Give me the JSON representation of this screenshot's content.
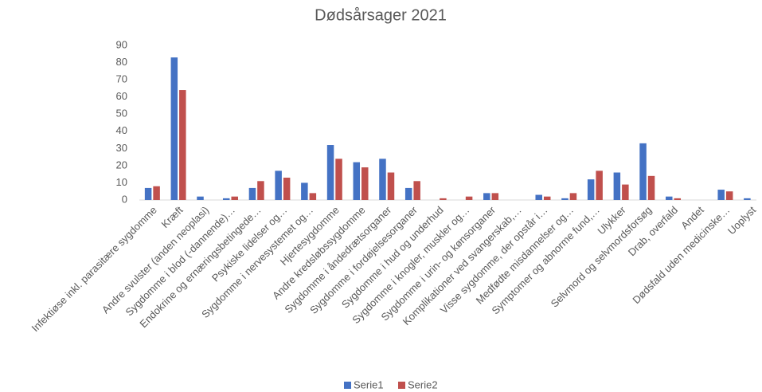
{
  "chart_data": {
    "type": "bar",
    "title": "Dødsårsager 2021",
    "categories": [
      "Infektiøse inkl. parasitære sygdomme",
      "Kræft",
      "Andre svulster (anden neoplasi)",
      "Sygdomme i blod (-dannende)…",
      "Endokrine og ernæringsbetingede…",
      "Psykiske lidelser og…",
      "Sygdomme i nervesystemet og…",
      "Hjertesygdomme",
      "Andre kredsløbssygdomme",
      "Sygdomme i åndedrætsorganer",
      "Sygdomme i fordøjelsesorganer",
      "Sygdomme i hud og underhud",
      "Sygdomme i knogler, muskler og…",
      "Sygdomme i urin- og kønsorganer",
      "Komplikationer ved svangerskab,…",
      "Visse sygdomme, der opstår i…",
      "Medfødte misdannelser og…",
      "Symptomer og abnorme fund,…",
      "Ulykker",
      "Selvmord og selvmordsforsøg",
      "Drab, overfald",
      "Andet",
      "Dødsfald uden medicinske…",
      "Uoplyst"
    ],
    "series": [
      {
        "name": "Serie1",
        "color": "#4472c4",
        "values": [
          7,
          83,
          2,
          1,
          7,
          17,
          10,
          32,
          22,
          24,
          7,
          0,
          0,
          4,
          0,
          3,
          1,
          12,
          16,
          33,
          2,
          0,
          6,
          1
        ]
      },
      {
        "name": "Serie2",
        "color": "#c0504d",
        "values": [
          8,
          64,
          0,
          2,
          11,
          13,
          4,
          24,
          19,
          16,
          11,
          1,
          2,
          4,
          0,
          2,
          4,
          17,
          9,
          14,
          1,
          0,
          5,
          0
        ]
      }
    ],
    "ylim": [
      0,
      90
    ],
    "yticks": [
      0,
      10,
      20,
      30,
      40,
      50,
      60,
      70,
      80,
      90
    ],
    "grid": false,
    "legend": "bottom"
  }
}
